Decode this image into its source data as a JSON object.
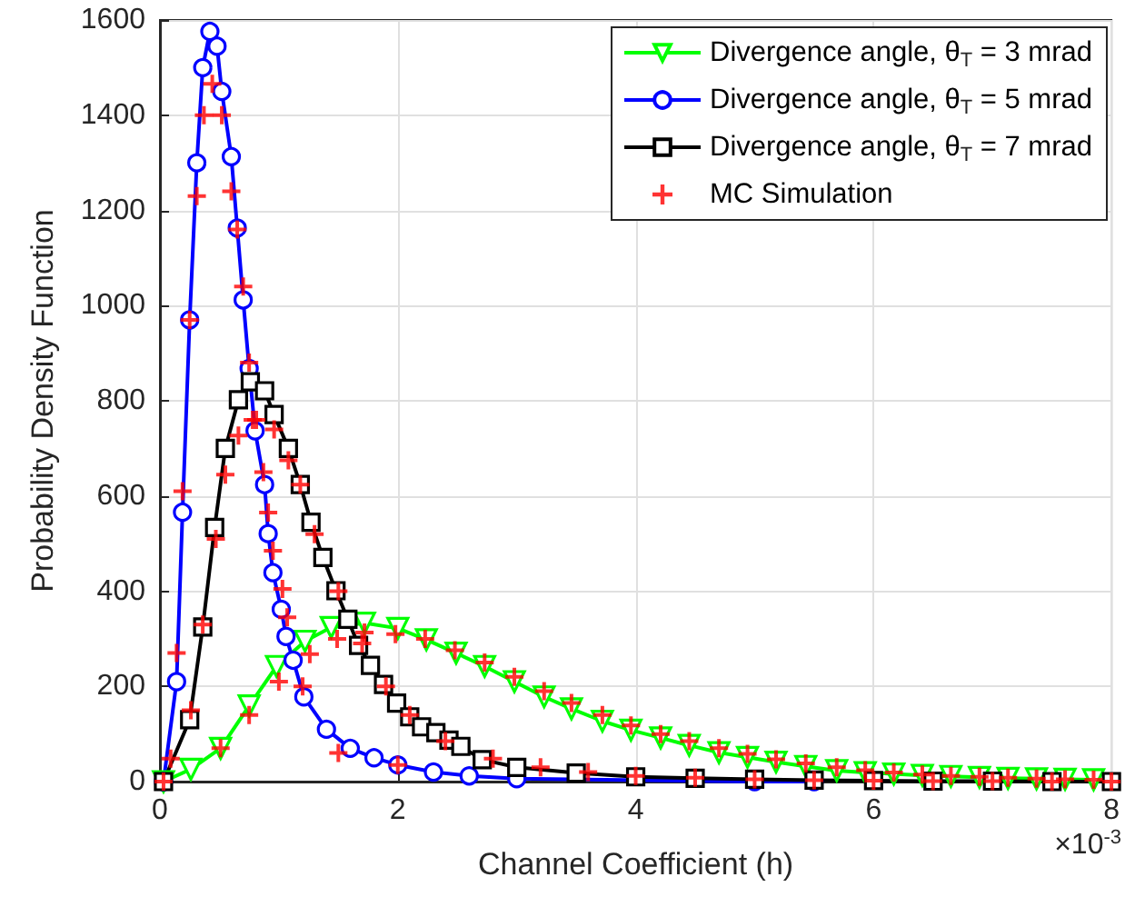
{
  "chart_data": {
    "type": "line",
    "xlabel": "Channel Coefficient (h)",
    "ylabel": "Probability Density Function",
    "annotations": [
      "×10$^{-3}$"
    ],
    "xlim": [
      0,
      8
    ],
    "xticks": [
      0,
      2,
      4,
      6,
      8
    ],
    "ylim": [
      0,
      1600
    ],
    "yticks": [
      0,
      200,
      400,
      600,
      800,
      1000,
      1200,
      1400,
      1600
    ],
    "grid": true,
    "legend": "top right",
    "line_style": "solid",
    "series": [
      {
        "name": "Divergence angle, θ$_{T}$ = 3 mrad",
        "color": "#00ff00",
        "marker": "triangle",
        "x": [
          0.03,
          0.26,
          0.51,
          0.75,
          0.98,
          1.22,
          1.44,
          1.72,
          2.0,
          2.24,
          2.49,
          2.73,
          2.98,
          3.23,
          3.46,
          3.72,
          3.96,
          4.21,
          4.45,
          4.7,
          4.94,
          5.18,
          5.43,
          5.69,
          5.93,
          6.17,
          6.41,
          6.65,
          6.89,
          7.13,
          7.37,
          7.61,
          7.85
        ],
        "values": [
          0,
          26,
          70,
          159,
          242,
          295,
          324,
          333,
          322,
          298,
          270,
          242,
          210,
          178,
          153,
          127,
          108,
          92,
          76,
          61,
          51,
          41,
          32,
          23,
          19,
          16,
          13,
          11,
          9,
          7,
          6,
          5,
          4
        ]
      },
      {
        "name": "Divergence angle, θ$_{T}$ = 5 mrad",
        "color": "#0000ff",
        "marker": "circle",
        "x": [
          0.03,
          0.14,
          0.19,
          0.25,
          0.31,
          0.36,
          0.42,
          0.48,
          0.52,
          0.6,
          0.65,
          0.7,
          0.75,
          0.8,
          0.88,
          0.91,
          0.95,
          1.02,
          1.06,
          1.12,
          1.21,
          1.4,
          1.6,
          1.8,
          2.0,
          2.3,
          2.6,
          3.0,
          5.0,
          5.5
        ],
        "values": [
          0,
          210,
          566,
          970,
          1300,
          1500,
          1576,
          1545,
          1450,
          1313,
          1163,
          1012,
          868,
          737,
          624,
          521,
          439,
          362,
          305,
          255,
          178,
          110,
          70,
          50,
          35,
          20,
          12,
          6,
          0,
          0
        ]
      },
      {
        "name": "Divergence angle, θ$_{T}$ = 7 mrad",
        "color": "#000000",
        "marker": "square",
        "x": [
          0.03,
          0.25,
          0.36,
          0.46,
          0.55,
          0.66,
          0.76,
          0.88,
          0.96,
          1.08,
          1.18,
          1.27,
          1.37,
          1.48,
          1.58,
          1.67,
          1.77,
          1.88,
          1.99,
          2.1,
          2.2,
          2.32,
          2.43,
          2.53,
          2.71,
          3.0,
          3.5,
          4.0,
          4.5,
          5.0,
          5.5,
          6.0,
          6.5,
          7.0,
          7.5,
          8.0
        ],
        "values": [
          0,
          130,
          325,
          534,
          700,
          802,
          840,
          821,
          771,
          700,
          624,
          545,
          471,
          401,
          341,
          286,
          244,
          204,
          165,
          136,
          115,
          103,
          87,
          74,
          46,
          30,
          18,
          10,
          7,
          5,
          3,
          2,
          1,
          1,
          0,
          0
        ]
      },
      {
        "name": "MC Simulation",
        "type": "scatter",
        "color": "#ff0000",
        "marker": "cross",
        "x": [
          0.09,
          0.14,
          0.19,
          0.25,
          0.31,
          0.37,
          0.44,
          0.52,
          0.6,
          0.65,
          0.7,
          0.75,
          0.81,
          0.87,
          0.91,
          0.95,
          1.03,
          1.07,
          1.2,
          1.5,
          2.0,
          0.26,
          0.36,
          0.47,
          0.55,
          0.66,
          0.78,
          0.96,
          1.08,
          1.18,
          1.3,
          1.5,
          1.7,
          1.9,
          2.1,
          2.4,
          2.8,
          3.2,
          3.6,
          4.0,
          4.5,
          5.0,
          5.5,
          6.0,
          6.5,
          7.0,
          7.5,
          8.0,
          0.03,
          0.51,
          0.75,
          1.0,
          1.26,
          1.49,
          1.72,
          1.98,
          2.23,
          2.48,
          2.73,
          2.98,
          3.23,
          3.46,
          3.72,
          3.96,
          4.21,
          4.45,
          4.7,
          4.94,
          5.18,
          5.43,
          5.69,
          5.93,
          6.17,
          6.41,
          6.65,
          6.89,
          7.13,
          7.37,
          7.61,
          7.85
        ],
        "values": [
          48,
          270,
          610,
          970,
          1230,
          1400,
          1466,
          1400,
          1240,
          1160,
          1040,
          880,
          760,
          650,
          565,
          485,
          405,
          345,
          200,
          60,
          35,
          150,
          330,
          510,
          645,
          727,
          760,
          740,
          675,
          624,
          520,
          400,
          290,
          200,
          140,
          85,
          48,
          30,
          20,
          12,
          8,
          5,
          3,
          2,
          1,
          1,
          0,
          0,
          0,
          70,
          140,
          210,
          268,
          300,
          313,
          310,
          300,
          276,
          250,
          220,
          190,
          165,
          140,
          118,
          100,
          85,
          70,
          58,
          47,
          38,
          30,
          24,
          19,
          15,
          12,
          10,
          8,
          6,
          5,
          4
        ]
      }
    ]
  }
}
